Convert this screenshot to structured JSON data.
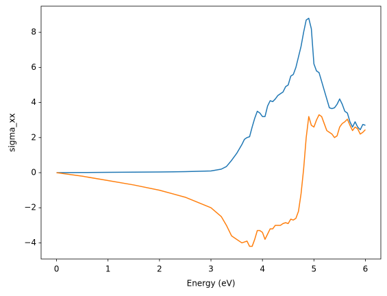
{
  "chart_data": {
    "type": "line",
    "xlabel": "Energy (eV)",
    "ylabel": "sigma_xx",
    "x": [
      0,
      0.5,
      1,
      1.5,
      2,
      2.5,
      3,
      3.2,
      3.3,
      3.4,
      3.5,
      3.6,
      3.65,
      3.7,
      3.75,
      3.8,
      3.85,
      3.9,
      3.95,
      4.0,
      4.05,
      4.1,
      4.15,
      4.2,
      4.25,
      4.3,
      4.35,
      4.4,
      4.45,
      4.5,
      4.55,
      4.6,
      4.65,
      4.7,
      4.75,
      4.8,
      4.85,
      4.9,
      4.95,
      5.0,
      5.05,
      5.1,
      5.15,
      5.2,
      5.25,
      5.3,
      5.35,
      5.4,
      5.45,
      5.5,
      5.55,
      5.6,
      5.65,
      5.7,
      5.75,
      5.8,
      5.85,
      5.9,
      5.95,
      6.0
    ],
    "series": [
      {
        "color": "#1f77b4",
        "values": [
          0,
          0.01,
          0.02,
          0.03,
          0.04,
          0.06,
          0.1,
          0.2,
          0.35,
          0.7,
          1.1,
          1.6,
          1.9,
          2.0,
          2.05,
          2.6,
          3.1,
          3.5,
          3.4,
          3.2,
          3.2,
          3.8,
          4.1,
          4.05,
          4.2,
          4.4,
          4.5,
          4.6,
          4.9,
          5.0,
          5.5,
          5.6,
          6.0,
          6.6,
          7.2,
          8.0,
          8.7,
          8.8,
          8.2,
          6.2,
          5.8,
          5.7,
          5.2,
          4.7,
          4.2,
          3.7,
          3.65,
          3.7,
          3.9,
          4.2,
          3.9,
          3.5,
          3.4,
          2.9,
          2.6,
          2.9,
          2.6,
          2.45,
          2.75,
          2.7
        ]
      },
      {
        "color": "#ff7f0e",
        "values": [
          0,
          -0.2,
          -0.45,
          -0.7,
          -1.0,
          -1.4,
          -2.0,
          -2.5,
          -3.0,
          -3.6,
          -3.8,
          -4.0,
          -3.95,
          -3.9,
          -4.2,
          -4.2,
          -3.8,
          -3.3,
          -3.3,
          -3.4,
          -3.8,
          -3.5,
          -3.2,
          -3.2,
          -3.0,
          -3.0,
          -3.0,
          -2.9,
          -2.85,
          -2.9,
          -2.65,
          -2.7,
          -2.6,
          -2.2,
          -1.2,
          0.2,
          2.0,
          3.2,
          2.7,
          2.6,
          3.0,
          3.3,
          3.2,
          2.8,
          2.4,
          2.3,
          2.2,
          2.0,
          2.1,
          2.6,
          2.8,
          2.9,
          3.05,
          2.7,
          2.4,
          2.6,
          2.5,
          2.2,
          2.3,
          2.45
        ]
      }
    ],
    "xlim": [
      -0.3,
      6.3
    ],
    "xticks": [
      0,
      1,
      2,
      3,
      4,
      5,
      6
    ],
    "ylim": [
      -4.92,
      9.49
    ],
    "yticks": [
      {
        "value": -4,
        "label": "−4"
      },
      {
        "value": -2,
        "label": "−2"
      },
      0,
      2,
      4,
      6,
      8
    ],
    "grid": false
  }
}
